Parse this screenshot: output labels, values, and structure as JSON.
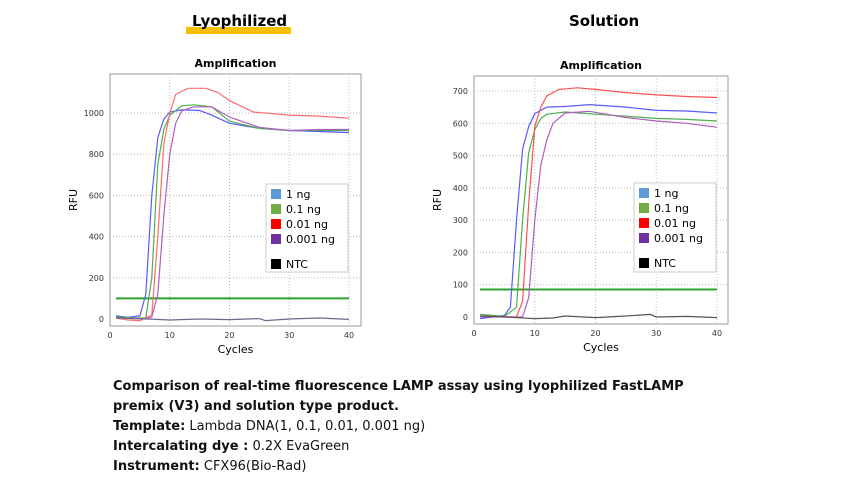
{
  "headings": {
    "left": "Lyophilized",
    "right": "Solution"
  },
  "legend_colors": {
    "1 ng": "#5b9bd5",
    "0.1 ng": "#70ad47",
    "0.01 ng": "#ff0000",
    "0.001 ng": "#7030a0",
    "NTC": "#000000"
  },
  "chart_data": [
    {
      "type": "line",
      "title": "Amplification",
      "xlabel": "Cycles",
      "ylabel": "RFU",
      "xlim": [
        0,
        42
      ],
      "ylim": [
        -30,
        1180
      ],
      "xticks": [
        0,
        10,
        20,
        30,
        40
      ],
      "yticks": [
        0,
        200,
        400,
        600,
        800,
        1000
      ],
      "grid": true,
      "legend": "right",
      "threshold": 100,
      "threshold_color": "#2ea02e",
      "series": [
        {
          "name": "1 ng",
          "color": "#5a5aff",
          "points": [
            [
              1,
              15
            ],
            [
              3,
              8
            ],
            [
              5,
              15
            ],
            [
              6,
              120
            ],
            [
              7,
              600
            ],
            [
              8,
              880
            ],
            [
              9,
              970
            ],
            [
              10,
              1005
            ],
            [
              12,
              1015
            ],
            [
              15,
              1012
            ],
            [
              17,
              990
            ],
            [
              20,
              950
            ],
            [
              25,
              925
            ],
            [
              30,
              915
            ],
            [
              35,
              910
            ],
            [
              40,
              905
            ]
          ]
        },
        {
          "name": "0.1 ng",
          "color": "#4caf4c",
          "points": [
            [
              1,
              10
            ],
            [
              4,
              5
            ],
            [
              6,
              5
            ],
            [
              7,
              200
            ],
            [
              8,
              750
            ],
            [
              9,
              920
            ],
            [
              10,
              990
            ],
            [
              12,
              1035
            ],
            [
              14,
              1040
            ],
            [
              17,
              1030
            ],
            [
              20,
              960
            ],
            [
              25,
              925
            ],
            [
              30,
              915
            ],
            [
              35,
              915
            ],
            [
              40,
              915
            ]
          ]
        },
        {
          "name": "0.01 ng",
          "color": "#ff6b6b",
          "points": [
            [
              1,
              5
            ],
            [
              3,
              -5
            ],
            [
              5,
              -8
            ],
            [
              7,
              20
            ],
            [
              8,
              400
            ],
            [
              9,
              850
            ],
            [
              10,
              1000
            ],
            [
              11,
              1090
            ],
            [
              13,
              1120
            ],
            [
              16,
              1120
            ],
            [
              18,
              1100
            ],
            [
              20,
              1060
            ],
            [
              24,
              1005
            ],
            [
              30,
              990
            ],
            [
              35,
              985
            ],
            [
              40,
              975
            ]
          ]
        },
        {
          "name": "0.001 ng",
          "color": "#b05cc0",
          "points": [
            [
              1,
              5
            ],
            [
              6,
              0
            ],
            [
              7,
              10
            ],
            [
              8,
              120
            ],
            [
              9,
              500
            ],
            [
              10,
              800
            ],
            [
              11,
              950
            ],
            [
              12,
              1010
            ],
            [
              14,
              1030
            ],
            [
              17,
              1030
            ],
            [
              20,
              980
            ],
            [
              25,
              930
            ],
            [
              30,
              915
            ],
            [
              35,
              920
            ],
            [
              40,
              920
            ]
          ]
        },
        {
          "name": "NTC",
          "color": "#6a6a8a",
          "points": [
            [
              1,
              5
            ],
            [
              5,
              2
            ],
            [
              10,
              -5
            ],
            [
              15,
              0
            ],
            [
              20,
              -3
            ],
            [
              25,
              2
            ],
            [
              26,
              -8
            ],
            [
              30,
              0
            ],
            [
              35,
              5
            ],
            [
              40,
              -2
            ]
          ]
        }
      ]
    },
    {
      "type": "line",
      "title": "Amplification",
      "xlabel": "Cycles",
      "ylabel": "RFU",
      "xlim": [
        0,
        42
      ],
      "ylim": [
        -25,
        760
      ],
      "xticks": [
        0,
        10,
        20,
        30,
        40
      ],
      "yticks": [
        0,
        100,
        200,
        300,
        400,
        500,
        600,
        700
      ],
      "grid": true,
      "legend": "right",
      "threshold": 85,
      "threshold_color": "#2ea02e",
      "series": [
        {
          "name": "1 ng",
          "color": "#5a5aff",
          "points": [
            [
              1,
              -5
            ],
            [
              5,
              5
            ],
            [
              6,
              30
            ],
            [
              7,
              300
            ],
            [
              8,
              520
            ],
            [
              9,
              590
            ],
            [
              10,
              630
            ],
            [
              12,
              650
            ],
            [
              15,
              652
            ],
            [
              19,
              658
            ],
            [
              25,
              650
            ],
            [
              30,
              640
            ],
            [
              35,
              638
            ],
            [
              40,
              632
            ]
          ]
        },
        {
          "name": "0.1 ng",
          "color": "#4caf4c",
          "points": [
            [
              1,
              8
            ],
            [
              5,
              2
            ],
            [
              7,
              30
            ],
            [
              8,
              300
            ],
            [
              9,
              510
            ],
            [
              10,
              580
            ],
            [
              11,
              615
            ],
            [
              12,
              628
            ],
            [
              15,
              635
            ],
            [
              20,
              628
            ],
            [
              25,
              622
            ],
            [
              30,
              615
            ],
            [
              35,
              612
            ],
            [
              40,
              607
            ]
          ]
        },
        {
          "name": "0.01 ng",
          "color": "#ff5050",
          "points": [
            [
              1,
              3
            ],
            [
              7,
              0
            ],
            [
              8,
              50
            ],
            [
              9,
              350
            ],
            [
              10,
              590
            ],
            [
              11,
              650
            ],
            [
              12,
              685
            ],
            [
              14,
              705
            ],
            [
              17,
              710
            ],
            [
              20,
              705
            ],
            [
              25,
              695
            ],
            [
              30,
              688
            ],
            [
              35,
              683
            ],
            [
              40,
              680
            ]
          ]
        },
        {
          "name": "0.001 ng",
          "color": "#b05cc0",
          "points": [
            [
              1,
              0
            ],
            [
              8,
              0
            ],
            [
              9,
              60
            ],
            [
              10,
              300
            ],
            [
              11,
              470
            ],
            [
              12,
              550
            ],
            [
              13,
              600
            ],
            [
              15,
              632
            ],
            [
              19,
              637
            ],
            [
              25,
              618
            ],
            [
              30,
              607
            ],
            [
              35,
              600
            ],
            [
              40,
              588
            ]
          ]
        },
        {
          "name": "NTC",
          "color": "#555555",
          "points": [
            [
              1,
              3
            ],
            [
              5,
              0
            ],
            [
              10,
              -5
            ],
            [
              13,
              -3
            ],
            [
              15,
              3
            ],
            [
              20,
              -2
            ],
            [
              25,
              3
            ],
            [
              29,
              8
            ],
            [
              30,
              0
            ],
            [
              35,
              2
            ],
            [
              40,
              -2
            ]
          ]
        }
      ]
    }
  ],
  "caption": {
    "title": "Comparison of real-time fluorescence LAMP assay using lyophilized FastLAMP premix (V3) and solution type product.",
    "template_label": "Template:",
    "template_value": " Lambda DNA(1, 0.1, 0.01, 0.001 ng)",
    "dye_label": "Intercalating dye :",
    "dye_value": " 0.2X EvaGreen",
    "instrument_label": "Instrument:",
    "instrument_value": " CFX96(Bio-Rad)"
  }
}
